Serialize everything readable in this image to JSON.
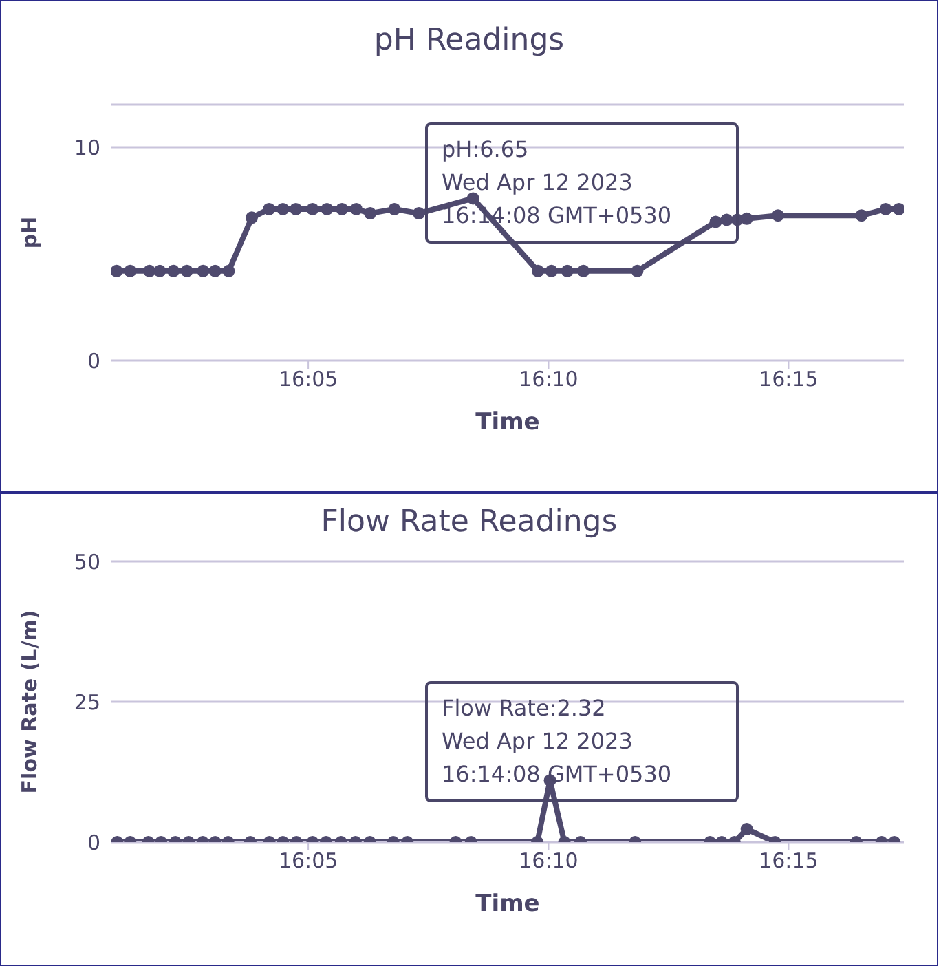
{
  "chart_data": [
    {
      "type": "line",
      "title": "pH Readings",
      "xlabel": "Time",
      "ylabel": "pH",
      "grid": "y",
      "legend": false,
      "marker": "circle",
      "line_style": "solid",
      "xlim": [
        16.015,
        16.29
      ],
      "xticks": [
        {
          "value": 16.0833,
          "label": "16:05"
        },
        {
          "value": 16.1667,
          "label": "16:10"
        },
        {
          "value": 16.25,
          "label": "16:15"
        }
      ],
      "ylim": [
        0,
        12
      ],
      "yticks": [
        0,
        10
      ],
      "series": [
        {
          "color": "#4f4a6e",
          "x": [
            16.0168,
            16.0215,
            16.0282,
            16.0318,
            16.0365,
            16.0412,
            16.0468,
            16.051,
            16.0557,
            16.0637,
            16.0697,
            16.0745,
            16.079,
            16.0848,
            16.0898,
            16.095,
            16.1,
            16.1048,
            16.1132,
            16.1217,
            16.1405,
            16.163,
            16.1677,
            16.1732,
            16.1788,
            16.1975,
            16.2247,
            16.2285,
            16.2322,
            16.2355,
            16.2463,
            16.2753,
            16.2837,
            16.2883
          ],
          "values": [
            4.2,
            4.2,
            4.2,
            4.2,
            4.2,
            4.2,
            4.2,
            4.2,
            4.2,
            6.7,
            7.1,
            7.1,
            7.1,
            7.1,
            7.1,
            7.1,
            7.1,
            6.9,
            7.1,
            6.9,
            7.6,
            4.2,
            4.2,
            4.2,
            4.2,
            4.2,
            6.5,
            6.6,
            6.6,
            6.65,
            6.8,
            6.8,
            7.1,
            7.1
          ]
        }
      ],
      "annotations": [
        "pH:6.65\nWed Apr 12 2023\n16:14:08 GMT+0530"
      ]
    },
    {
      "type": "line",
      "title": "Flow Rate Readings",
      "xlabel": "Time",
      "ylabel": "Flow Rate (L/m)",
      "grid": "y",
      "legend": false,
      "marker": "circle",
      "line_style": "solid",
      "xlim": [
        16.015,
        16.29
      ],
      "xticks": [
        {
          "value": 16.0833,
          "label": "16:05"
        },
        {
          "value": 16.1667,
          "label": "16:10"
        },
        {
          "value": 16.25,
          "label": "16:15"
        }
      ],
      "ylim": [
        0,
        50
      ],
      "yticks": [
        0,
        25,
        50
      ],
      "series": [
        {
          "color": "#4f4a6e",
          "x": [
            16.017,
            16.0215,
            16.0278,
            16.0322,
            16.0372,
            16.0418,
            16.0467,
            16.051,
            16.0555,
            16.0632,
            16.0698,
            16.0745,
            16.0792,
            16.0848,
            16.0895,
            16.0947,
            16.0997,
            16.1047,
            16.1128,
            16.1177,
            16.1345,
            16.1398,
            16.1628,
            16.1672,
            16.1722,
            16.1778,
            16.1967,
            16.2227,
            16.2268,
            16.2312,
            16.2355,
            16.2453,
            16.2735,
            16.2823,
            16.2867
          ],
          "values": [
            0,
            0,
            0,
            0,
            0,
            0,
            0,
            0,
            0,
            0,
            0,
            0,
            0,
            0,
            0,
            0,
            0,
            0,
            0,
            0,
            0,
            0,
            0,
            11,
            0,
            0,
            0,
            0,
            0,
            0,
            2.32,
            0,
            0,
            0,
            0
          ]
        }
      ],
      "annotations": [
        "Flow Rate:2.32\nWed Apr 12 2023\n16:14:08 GMT+0530"
      ]
    }
  ]
}
